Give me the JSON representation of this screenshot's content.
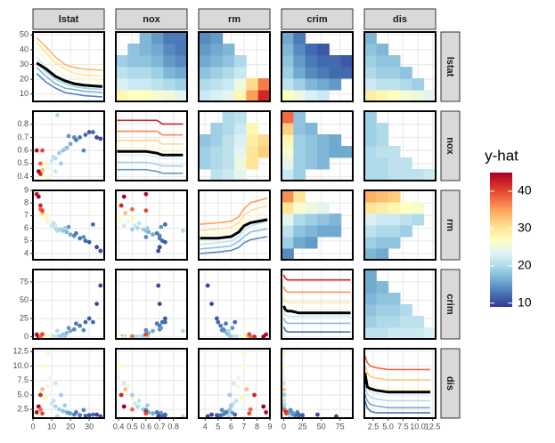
{
  "chart_data": {
    "type": "pairs",
    "variables": [
      {
        "name": "lstat",
        "xlim": [
          0,
          38
        ],
        "xticks": [
          0,
          10,
          20,
          30
        ],
        "ylim": [
          5,
          52
        ],
        "yticks": [
          10,
          20,
          30,
          40,
          50
        ]
      },
      {
        "name": "nox",
        "xlim": [
          0.38,
          0.9
        ],
        "xticks": [
          0.4,
          0.5,
          0.6,
          0.7,
          0.8
        ],
        "ylim": [
          0.37,
          0.9
        ],
        "yticks": [
          0.4,
          0.5,
          0.6,
          0.7,
          0.8
        ]
      },
      {
        "name": "rm",
        "xlim": [
          3.5,
          9
        ],
        "xticks": [
          4,
          5,
          6,
          7,
          8,
          9
        ],
        "ylim": [
          3.5,
          9
        ],
        "yticks": [
          4,
          5,
          6,
          7,
          8,
          9
        ]
      },
      {
        "name": "crim",
        "xlim": [
          -3,
          92
        ],
        "xticks": [
          0,
          25,
          50,
          75
        ],
        "ylim": [
          -3,
          92
        ],
        "yticks": [
          0,
          25,
          50,
          75
        ]
      },
      {
        "name": "dis",
        "xlim": [
          1,
          13
        ],
        "xticks": [
          2.5,
          {
            "value": 5,
            "label": "5.0"
          },
          {
            "value": 7.5,
            "label": "7.5"
          },
          {
            "value": 10,
            "label": "10.0"
          },
          12.5
        ],
        "ylim": [
          1,
          13
        ],
        "yticks": [
          2.5,
          {
            "value": 5,
            "label": "5.0"
          },
          7.5,
          {
            "value": 10,
            "label": "10.0"
          },
          12.5
        ]
      }
    ],
    "legend": {
      "title": "y-hat",
      "lim": [
        9,
        45
      ],
      "ticks": [
        10,
        20,
        30,
        40
      ],
      "colors": [
        "#313695",
        "#4575b4",
        "#74add1",
        "#abd9e9",
        "#e0f3f8",
        "#ffffbf",
        "#fee090",
        "#fdae61",
        "#f46d43",
        "#d73027",
        "#a50026"
      ]
    },
    "observations": {
      "values": [
        [
          5,
          4,
          3,
          7,
          8,
          10,
          12,
          14,
          16,
          18,
          20,
          22,
          25,
          28,
          30,
          34,
          36,
          12,
          9,
          6,
          15,
          19,
          23,
          27,
          11,
          4,
          2,
          13,
          17,
          32,
          8,
          5
        ],
        [
          0.45,
          0.42,
          0.44,
          0.5,
          0.47,
          0.52,
          0.54,
          0.58,
          0.6,
          0.62,
          0.65,
          0.7,
          0.7,
          0.72,
          0.74,
          0.7,
          0.69,
          0.44,
          0.4,
          0.41,
          0.5,
          0.71,
          0.68,
          0.6,
          0.55,
          0.5,
          0.6,
          0.87,
          0.61,
          0.74,
          0.39,
          0.6
        ],
        [
          7.2,
          7.8,
          8.5,
          6.8,
          6.5,
          6.2,
          6.0,
          5.9,
          5.8,
          5.7,
          5.5,
          5.4,
          5.2,
          5.0,
          4.9,
          4.5,
          4.2,
          6.2,
          6.6,
          6.9,
          5.9,
          6.1,
          5.6,
          5.3,
          6.4,
          7.5,
          8.7,
          5.8,
          6.0,
          6.3,
          7.0,
          7.4
        ],
        [
          0.1,
          0.05,
          0.04,
          0.2,
          0.1,
          0.3,
          0.5,
          1,
          3,
          5,
          8,
          10,
          15,
          20,
          25,
          45,
          70,
          0.1,
          0.05,
          0.03,
          0.6,
          12,
          18,
          9,
          0.4,
          0.3,
          3,
          8,
          0.2,
          20,
          0.02,
          3.5
        ],
        [
          6,
          5,
          3,
          4.5,
          6.5,
          3.5,
          3,
          2.5,
          2.2,
          2,
          1.8,
          1.6,
          1.5,
          1.4,
          1.5,
          1.6,
          1.3,
          7,
          8,
          10,
          5,
          1.9,
          2,
          2.4,
          4,
          2.5,
          2,
          1.3,
          3.2,
          1.6,
          12,
          1.8
        ]
      ],
      "yhat": [
        33,
        42,
        45,
        28,
        25,
        22,
        20,
        19,
        18,
        17,
        16,
        14,
        13,
        12,
        11,
        10,
        10,
        22,
        25,
        27,
        19,
        15,
        13,
        14,
        21,
        38,
        44,
        20,
        19,
        12,
        26,
        40
      ]
    },
    "ice": [
      {
        "x": [
          2,
          7,
          12,
          17,
          22,
          27,
          37
        ],
        "ylim": [
          5,
          52
        ],
        "curves": [
          [
            48,
            42,
            35,
            30,
            28,
            27,
            26
          ],
          [
            45,
            38,
            31,
            27,
            24,
            23,
            22
          ],
          [
            40,
            33,
            27,
            23,
            21,
            20,
            19
          ],
          [
            35,
            28,
            22,
            19,
            17,
            16,
            16
          ],
          [
            32,
            25,
            20,
            17,
            15,
            14,
            13
          ],
          [
            28,
            22,
            17,
            14,
            13,
            12,
            11
          ],
          [
            24,
            18,
            14,
            11,
            10,
            9,
            8
          ]
        ],
        "pdp": [
          31,
          27,
          22,
          19,
          17,
          16,
          15
        ]
      },
      {
        "x": [
          0.39,
          0.5,
          0.6,
          0.68,
          0.72,
          0.8,
          0.87
        ],
        "ylim": [
          10,
          48
        ],
        "curves": [
          [
            43,
            43,
            43,
            43,
            41,
            41,
            41
          ],
          [
            37,
            37,
            37,
            37,
            35,
            35,
            35
          ],
          [
            32,
            32,
            32,
            32,
            30,
            30,
            30
          ],
          [
            28,
            28,
            28,
            28,
            26,
            26,
            26
          ],
          [
            24,
            24,
            24,
            23,
            22,
            22,
            22
          ],
          [
            20,
            20,
            20,
            19,
            18,
            18,
            18
          ],
          [
            16,
            16,
            16,
            15,
            14,
            14,
            14
          ]
        ],
        "pdp": [
          26,
          26,
          26,
          25,
          24,
          24,
          24
        ]
      },
      {
        "x": [
          3.6,
          5,
          6,
          6.6,
          7,
          7.5,
          8.8
        ],
        "ylim": [
          5,
          50
        ],
        "curves": [
          [
            28,
            29,
            30,
            33,
            38,
            42,
            45
          ],
          [
            24,
            25,
            26,
            29,
            34,
            37,
            40
          ],
          [
            21,
            22,
            23,
            26,
            30,
            33,
            36
          ],
          [
            18,
            19,
            20,
            23,
            27,
            30,
            33
          ],
          [
            15,
            16,
            17,
            20,
            24,
            27,
            30
          ],
          [
            12,
            13,
            14,
            17,
            20,
            23,
            25
          ],
          [
            9,
            10,
            11,
            13,
            16,
            18,
            20
          ]
        ],
        "pdp": [
          19,
          19,
          20,
          23,
          27,
          29,
          31
        ]
      },
      {
        "x": [
          0,
          2,
          5,
          10,
          20,
          40,
          89
        ],
        "ylim": [
          8,
          48
        ],
        "curves": [
          [
            45,
            43,
            42,
            42,
            42,
            42,
            42
          ],
          [
            38,
            36,
            35,
            35,
            35,
            35,
            35
          ],
          [
            32,
            30,
            29,
            29,
            29,
            29,
            29
          ],
          [
            28,
            26,
            25,
            25,
            25,
            25,
            25
          ],
          [
            24,
            22,
            21,
            21,
            21,
            21,
            21
          ],
          [
            20,
            18,
            17,
            17,
            17,
            17,
            17
          ],
          [
            15,
            13,
            12,
            12,
            12,
            12,
            12
          ]
        ],
        "pdp": [
          27,
          25,
          24,
          24,
          23,
          23,
          23
        ]
      },
      {
        "x": [
          1.1,
          1.5,
          2,
          3,
          5,
          8,
          12.1
        ],
        "ylim": [
          8,
          48
        ],
        "curves": [
          [
            44,
            40,
            38,
            37,
            36,
            36,
            36
          ],
          [
            38,
            34,
            32,
            31,
            30,
            30,
            30
          ],
          [
            33,
            29,
            27,
            26,
            25,
            25,
            25
          ],
          [
            30,
            25,
            23,
            22,
            21,
            21,
            21
          ],
          [
            26,
            22,
            20,
            19,
            18,
            18,
            18
          ],
          [
            22,
            18,
            16,
            15,
            14,
            14,
            14
          ],
          [
            18,
            14,
            12,
            11,
            11,
            11,
            11
          ]
        ],
        "pdp": [
          34,
          26,
          25,
          24,
          23,
          23,
          23
        ]
      }
    ],
    "heatmaps": [
      {
        "values": [
          [
            28,
            27,
            27,
            26,
            25,
            24
          ],
          [
            23,
            22,
            22,
            21,
            20,
            19
          ],
          [
            21,
            20,
            20,
            19,
            17,
            16
          ],
          [
            19,
            18,
            18,
            17,
            15,
            14
          ],
          [
            null,
            18,
            17,
            16,
            14,
            13
          ],
          [
            null,
            null,
            17,
            15,
            13,
            13
          ]
        ]
      },
      {
        "values": [
          [
            22,
            23,
            24,
            28,
            35,
            42
          ],
          [
            20,
            21,
            22,
            25,
            31,
            37
          ],
          [
            18,
            19,
            20,
            22,
            null,
            null
          ],
          [
            16,
            17,
            18,
            20,
            null,
            null
          ],
          [
            15,
            16,
            17,
            null,
            null,
            null
          ],
          [
            14,
            15,
            null,
            null,
            null,
            null
          ]
        ]
      },
      {
        "values": [
          [
            27,
            25,
            23,
            22,
            null,
            null
          ],
          [
            21,
            19,
            17,
            16,
            15,
            null
          ],
          [
            19,
            16,
            14,
            13,
            12,
            12
          ],
          [
            18,
            15,
            13,
            12,
            12,
            11
          ],
          [
            17,
            14,
            12,
            11,
            null,
            null
          ],
          [
            16,
            13,
            null,
            null,
            null,
            null
          ]
        ]
      },
      {
        "values": [
          [
            29,
            28,
            27,
            26,
            25,
            24
          ],
          [
            22,
            21,
            21,
            20,
            19,
            null
          ],
          [
            20,
            19,
            19,
            18,
            null,
            null
          ],
          [
            19,
            18,
            18,
            null,
            null,
            null
          ],
          [
            18,
            17,
            null,
            null,
            null,
            null
          ],
          [
            17,
            null,
            null,
            null,
            null,
            null
          ]
        ]
      },
      {
        "values": [
          [
            null,
            21,
            22,
            24,
            null,
            null
          ],
          [
            19,
            20,
            21,
            25,
            30,
            null
          ],
          [
            19,
            20,
            21,
            24,
            30,
            32
          ],
          [
            18,
            19,
            21,
            23,
            29,
            31
          ],
          [
            null,
            19,
            20,
            22,
            28,
            null
          ],
          [
            null,
            null,
            20,
            21,
            null,
            null
          ]
        ]
      },
      {
        "values": [
          [
            22,
            19,
            null,
            null,
            null,
            null
          ],
          [
            24,
            19,
            18,
            17,
            null,
            null
          ],
          [
            26,
            19,
            18,
            17,
            16,
            16
          ],
          [
            28,
            19,
            18,
            17,
            16,
            null
          ],
          [
            32,
            18,
            17,
            null,
            null,
            null
          ],
          [
            38,
            18,
            null,
            null,
            null,
            null
          ]
        ]
      },
      {
        "values": [
          [
            20,
            20,
            21,
            21,
            21,
            22
          ],
          [
            20,
            20,
            21,
            21,
            null,
            null
          ],
          [
            20,
            21,
            21,
            null,
            null,
            null
          ],
          [
            19,
            20,
            null,
            null,
            null,
            null
          ],
          [
            19,
            20,
            null,
            null,
            null,
            null
          ],
          [
            19,
            null,
            null,
            null,
            null,
            null
          ]
        ]
      },
      {
        "values": [
          [
            14,
            null,
            null,
            null,
            null,
            null
          ],
          [
            19,
            16,
            15,
            null,
            null,
            null
          ],
          [
            21,
            18,
            17,
            16,
            16,
            null
          ],
          [
            24,
            20,
            19,
            18,
            17,
            null
          ],
          [
            30,
            26,
            25,
            24,
            null,
            null
          ],
          [
            36,
            30,
            null,
            null,
            null,
            null
          ]
        ]
      },
      {
        "values": [
          [
            17,
            16,
            null,
            null,
            null,
            null
          ],
          [
            19,
            18,
            18,
            null,
            null,
            null
          ],
          [
            21,
            20,
            20,
            19,
            null,
            null
          ],
          [
            23,
            22,
            22,
            21,
            20,
            null
          ],
          [
            30,
            29,
            28,
            27,
            26,
            null
          ],
          [
            34,
            33,
            32,
            null,
            null,
            null
          ]
        ]
      },
      {
        "values": [
          [
            21,
            21,
            22,
            22,
            22,
            23
          ],
          [
            19,
            20,
            20,
            21,
            21,
            null
          ],
          [
            18,
            19,
            19,
            20,
            null,
            null
          ],
          [
            17,
            18,
            18,
            null,
            null,
            null
          ],
          [
            16,
            17,
            null,
            null,
            null,
            null
          ],
          [
            16,
            null,
            null,
            null,
            null,
            null
          ]
        ]
      }
    ]
  }
}
